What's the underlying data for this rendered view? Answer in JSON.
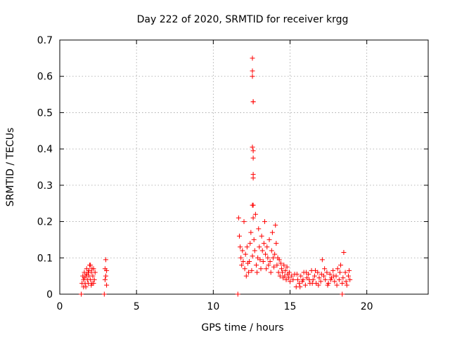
{
  "chart_data": {
    "type": "scatter",
    "title": "Day 222 of 2020, SRMTID for receiver krgg",
    "xlabel": "GPS time / hours",
    "ylabel": "SRMTID / TECUs",
    "xlim": [
      0,
      24
    ],
    "ylim": [
      0,
      0.7
    ],
    "xticks": [
      0,
      5,
      10,
      15,
      20
    ],
    "yticks": [
      0,
      0.1,
      0.2,
      0.3,
      0.4,
      0.5,
      0.6,
      0.7
    ],
    "xtick_labels": [
      "0",
      "5",
      "10",
      "15",
      "20"
    ],
    "ytick_labels": [
      "0",
      "0.1",
      "0.2",
      "0.3",
      "0.4",
      "0.5",
      "0.6",
      "0.7"
    ],
    "grid": true,
    "marker_color": "#ff0000",
    "series": [
      {
        "name": "SRMTID",
        "marker": "plus",
        "points": [
          [
            1.4,
            0.0
          ],
          [
            2.9,
            0.0
          ],
          [
            11.6,
            0.0
          ],
          [
            18.4,
            0.0
          ],
          [
            1.45,
            0.03
          ],
          [
            1.5,
            0.05
          ],
          [
            1.55,
            0.04
          ],
          [
            1.6,
            0.06
          ],
          [
            1.65,
            0.03
          ],
          [
            1.7,
            0.05
          ],
          [
            1.75,
            0.07
          ],
          [
            1.8,
            0.04
          ],
          [
            1.85,
            0.06
          ],
          [
            1.9,
            0.05
          ],
          [
            1.95,
            0.08
          ],
          [
            2.0,
            0.04
          ],
          [
            2.05,
            0.06
          ],
          [
            2.1,
            0.03
          ],
          [
            2.15,
            0.05
          ],
          [
            2.2,
            0.07
          ],
          [
            2.25,
            0.04
          ],
          [
            2.3,
            0.06
          ],
          [
            1.55,
            0.02
          ],
          [
            1.7,
            0.02
          ],
          [
            1.85,
            0.03
          ],
          [
            2.0,
            0.08
          ],
          [
            2.1,
            0.07
          ],
          [
            2.2,
            0.03
          ],
          [
            1.6,
            0.045
          ],
          [
            1.9,
            0.065
          ],
          [
            2.05,
            0.025
          ],
          [
            1.75,
            0.055
          ],
          [
            2.95,
            0.07
          ],
          [
            3.0,
            0.095
          ],
          [
            3.0,
            0.05
          ],
          [
            3.05,
            0.065
          ],
          [
            2.95,
            0.04
          ],
          [
            3.05,
            0.025
          ],
          [
            11.65,
            0.21
          ],
          [
            11.7,
            0.16
          ],
          [
            11.75,
            0.13
          ],
          [
            11.8,
            0.1
          ],
          [
            11.85,
            0.08
          ],
          [
            11.9,
            0.12
          ],
          [
            11.95,
            0.09
          ],
          [
            12.0,
            0.2
          ],
          [
            12.05,
            0.07
          ],
          [
            12.1,
            0.11
          ],
          [
            12.15,
            0.05
          ],
          [
            12.2,
            0.13
          ],
          [
            12.25,
            0.085
          ],
          [
            12.3,
            0.06
          ],
          [
            12.35,
            0.09
          ],
          [
            12.4,
            0.14
          ],
          [
            12.45,
            0.17
          ],
          [
            12.5,
            0.065
          ],
          [
            12.55,
            0.105
          ],
          [
            12.6,
            0.21
          ],
          [
            12.65,
            0.15
          ],
          [
            12.7,
            0.12
          ],
          [
            12.75,
            0.22
          ],
          [
            12.8,
            0.08
          ],
          [
            12.85,
            0.06
          ],
          [
            12.9,
            0.1
          ],
          [
            12.95,
            0.18
          ],
          [
            13.0,
            0.13
          ],
          [
            13.05,
            0.095
          ],
          [
            13.1,
            0.07
          ],
          [
            13.15,
            0.16
          ],
          [
            13.2,
            0.12
          ],
          [
            13.25,
            0.09
          ],
          [
            13.3,
            0.14
          ],
          [
            13.35,
            0.2
          ],
          [
            13.4,
            0.11
          ],
          [
            13.45,
            0.07
          ],
          [
            13.5,
            0.13
          ],
          [
            13.55,
            0.1
          ],
          [
            13.6,
            0.08
          ],
          [
            13.65,
            0.15
          ],
          [
            13.7,
            0.09
          ],
          [
            13.75,
            0.06
          ],
          [
            13.8,
            0.12
          ],
          [
            13.85,
            0.17
          ],
          [
            13.9,
            0.1
          ],
          [
            13.95,
            0.075
          ],
          [
            14.0,
            0.11
          ],
          [
            14.05,
            0.19
          ],
          [
            14.1,
            0.14
          ],
          [
            14.15,
            0.08
          ],
          [
            14.2,
            0.1
          ],
          [
            14.25,
            0.06
          ],
          [
            14.3,
            0.095
          ],
          [
            14.35,
            0.05
          ],
          [
            14.4,
            0.085
          ],
          [
            14.45,
            0.07
          ],
          [
            14.5,
            0.06
          ],
          [
            14.55,
            0.045
          ],
          [
            14.6,
            0.08
          ],
          [
            14.65,
            0.05
          ],
          [
            14.7,
            0.065
          ],
          [
            14.75,
            0.04
          ],
          [
            14.8,
            0.075
          ],
          [
            14.85,
            0.055
          ],
          [
            14.9,
            0.045
          ],
          [
            14.95,
            0.06
          ],
          [
            15.0,
            0.035
          ],
          [
            15.1,
            0.05
          ],
          [
            15.2,
            0.04
          ],
          [
            15.3,
            0.055
          ],
          [
            12.55,
            0.65
          ],
          [
            12.55,
            0.615
          ],
          [
            12.55,
            0.6
          ],
          [
            12.6,
            0.53
          ],
          [
            12.6,
            0.53
          ],
          [
            12.55,
            0.405
          ],
          [
            12.6,
            0.395
          ],
          [
            12.6,
            0.375
          ],
          [
            12.6,
            0.33
          ],
          [
            12.6,
            0.32
          ],
          [
            12.55,
            0.245
          ],
          [
            12.6,
            0.245
          ],
          [
            15.4,
            0.02
          ],
          [
            15.5,
            0.04
          ],
          [
            15.6,
            0.03
          ],
          [
            15.7,
            0.05
          ],
          [
            15.8,
            0.035
          ],
          [
            15.9,
            0.06
          ],
          [
            16.0,
            0.025
          ],
          [
            16.1,
            0.045
          ],
          [
            16.2,
            0.055
          ],
          [
            16.3,
            0.03
          ],
          [
            16.4,
            0.065
          ],
          [
            16.5,
            0.04
          ],
          [
            16.6,
            0.05
          ],
          [
            16.7,
            0.03
          ],
          [
            16.8,
            0.06
          ],
          [
            16.9,
            0.045
          ],
          [
            17.0,
            0.035
          ],
          [
            17.1,
            0.095
          ],
          [
            17.2,
            0.05
          ],
          [
            17.3,
            0.04
          ],
          [
            17.4,
            0.06
          ],
          [
            17.5,
            0.03
          ],
          [
            17.6,
            0.055
          ],
          [
            17.7,
            0.045
          ],
          [
            17.8,
            0.065
          ],
          [
            17.9,
            0.035
          ],
          [
            18.0,
            0.05
          ],
          [
            18.1,
            0.07
          ],
          [
            18.2,
            0.04
          ],
          [
            18.3,
            0.08
          ],
          [
            18.4,
            0.03
          ],
          [
            18.5,
            0.115
          ],
          [
            18.6,
            0.06
          ],
          [
            18.7,
            0.025
          ],
          [
            18.8,
            0.05
          ],
          [
            18.9,
            0.04
          ],
          [
            15.45,
            0.055
          ],
          [
            15.65,
            0.02
          ],
          [
            15.85,
            0.04
          ],
          [
            16.05,
            0.06
          ],
          [
            16.25,
            0.04
          ],
          [
            16.45,
            0.03
          ],
          [
            16.65,
            0.065
          ],
          [
            16.85,
            0.025
          ],
          [
            17.05,
            0.055
          ],
          [
            17.25,
            0.07
          ],
          [
            17.45,
            0.025
          ],
          [
            17.65,
            0.04
          ],
          [
            17.85,
            0.05
          ],
          [
            18.05,
            0.025
          ],
          [
            18.25,
            0.06
          ],
          [
            18.45,
            0.045
          ],
          [
            18.65,
            0.035
          ],
          [
            18.85,
            0.065
          ]
        ]
      }
    ]
  }
}
